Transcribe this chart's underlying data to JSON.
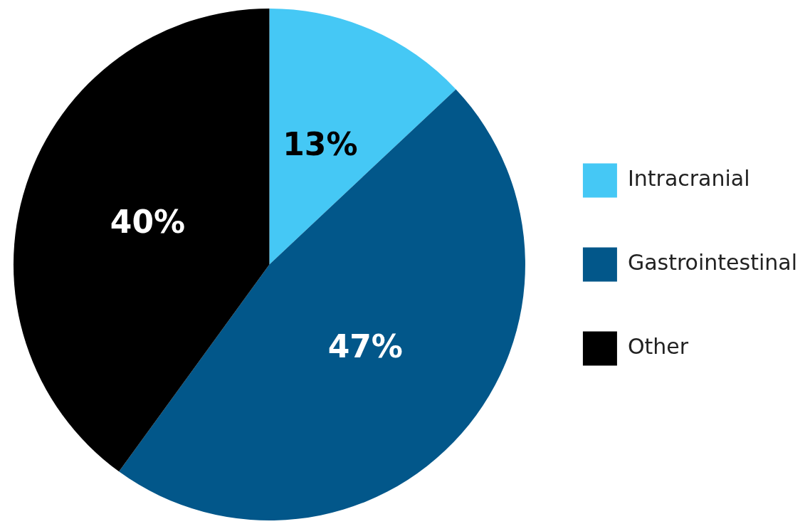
{
  "chart_data": {
    "type": "pie",
    "categories": [
      "Intracranial",
      "Gastrointestinal",
      "Other"
    ],
    "values": [
      13,
      47,
      40
    ],
    "colors": [
      "#45c8f5",
      "#02578a",
      "#000000"
    ],
    "value_labels": [
      "13%",
      "47%",
      "40%"
    ],
    "legend": "right"
  }
}
